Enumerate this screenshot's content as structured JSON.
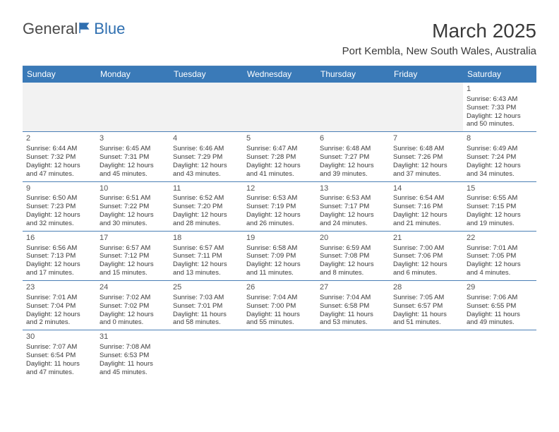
{
  "logo": {
    "text1": "General",
    "text2": "Blue"
  },
  "title": "March 2025",
  "location": "Port Kembla, New South Wales, Australia",
  "weekdays": [
    "Sunday",
    "Monday",
    "Tuesday",
    "Wednesday",
    "Thursday",
    "Friday",
    "Saturday"
  ],
  "colors": {
    "header_bg": "#3a7ab8",
    "border": "#4a7fb5",
    "empty_bg": "#f2f2f2",
    "text": "#3a3a3a",
    "logo_accent": "#2f6fb0"
  },
  "weeks": [
    [
      {
        "empty": true
      },
      {
        "empty": true
      },
      {
        "empty": true
      },
      {
        "empty": true
      },
      {
        "empty": true
      },
      {
        "empty": true
      },
      {
        "num": "1",
        "sunrise": "Sunrise: 6:43 AM",
        "sunset": "Sunset: 7:33 PM",
        "daylight": "Daylight: 12 hours and 50 minutes."
      }
    ],
    [
      {
        "num": "2",
        "sunrise": "Sunrise: 6:44 AM",
        "sunset": "Sunset: 7:32 PM",
        "daylight": "Daylight: 12 hours and 47 minutes."
      },
      {
        "num": "3",
        "sunrise": "Sunrise: 6:45 AM",
        "sunset": "Sunset: 7:31 PM",
        "daylight": "Daylight: 12 hours and 45 minutes."
      },
      {
        "num": "4",
        "sunrise": "Sunrise: 6:46 AM",
        "sunset": "Sunset: 7:29 PM",
        "daylight": "Daylight: 12 hours and 43 minutes."
      },
      {
        "num": "5",
        "sunrise": "Sunrise: 6:47 AM",
        "sunset": "Sunset: 7:28 PM",
        "daylight": "Daylight: 12 hours and 41 minutes."
      },
      {
        "num": "6",
        "sunrise": "Sunrise: 6:48 AM",
        "sunset": "Sunset: 7:27 PM",
        "daylight": "Daylight: 12 hours and 39 minutes."
      },
      {
        "num": "7",
        "sunrise": "Sunrise: 6:48 AM",
        "sunset": "Sunset: 7:26 PM",
        "daylight": "Daylight: 12 hours and 37 minutes."
      },
      {
        "num": "8",
        "sunrise": "Sunrise: 6:49 AM",
        "sunset": "Sunset: 7:24 PM",
        "daylight": "Daylight: 12 hours and 34 minutes."
      }
    ],
    [
      {
        "num": "9",
        "sunrise": "Sunrise: 6:50 AM",
        "sunset": "Sunset: 7:23 PM",
        "daylight": "Daylight: 12 hours and 32 minutes."
      },
      {
        "num": "10",
        "sunrise": "Sunrise: 6:51 AM",
        "sunset": "Sunset: 7:22 PM",
        "daylight": "Daylight: 12 hours and 30 minutes."
      },
      {
        "num": "11",
        "sunrise": "Sunrise: 6:52 AM",
        "sunset": "Sunset: 7:20 PM",
        "daylight": "Daylight: 12 hours and 28 minutes."
      },
      {
        "num": "12",
        "sunrise": "Sunrise: 6:53 AM",
        "sunset": "Sunset: 7:19 PM",
        "daylight": "Daylight: 12 hours and 26 minutes."
      },
      {
        "num": "13",
        "sunrise": "Sunrise: 6:53 AM",
        "sunset": "Sunset: 7:17 PM",
        "daylight": "Daylight: 12 hours and 24 minutes."
      },
      {
        "num": "14",
        "sunrise": "Sunrise: 6:54 AM",
        "sunset": "Sunset: 7:16 PM",
        "daylight": "Daylight: 12 hours and 21 minutes."
      },
      {
        "num": "15",
        "sunrise": "Sunrise: 6:55 AM",
        "sunset": "Sunset: 7:15 PM",
        "daylight": "Daylight: 12 hours and 19 minutes."
      }
    ],
    [
      {
        "num": "16",
        "sunrise": "Sunrise: 6:56 AM",
        "sunset": "Sunset: 7:13 PM",
        "daylight": "Daylight: 12 hours and 17 minutes."
      },
      {
        "num": "17",
        "sunrise": "Sunrise: 6:57 AM",
        "sunset": "Sunset: 7:12 PM",
        "daylight": "Daylight: 12 hours and 15 minutes."
      },
      {
        "num": "18",
        "sunrise": "Sunrise: 6:57 AM",
        "sunset": "Sunset: 7:11 PM",
        "daylight": "Daylight: 12 hours and 13 minutes."
      },
      {
        "num": "19",
        "sunrise": "Sunrise: 6:58 AM",
        "sunset": "Sunset: 7:09 PM",
        "daylight": "Daylight: 12 hours and 11 minutes."
      },
      {
        "num": "20",
        "sunrise": "Sunrise: 6:59 AM",
        "sunset": "Sunset: 7:08 PM",
        "daylight": "Daylight: 12 hours and 8 minutes."
      },
      {
        "num": "21",
        "sunrise": "Sunrise: 7:00 AM",
        "sunset": "Sunset: 7:06 PM",
        "daylight": "Daylight: 12 hours and 6 minutes."
      },
      {
        "num": "22",
        "sunrise": "Sunrise: 7:01 AM",
        "sunset": "Sunset: 7:05 PM",
        "daylight": "Daylight: 12 hours and 4 minutes."
      }
    ],
    [
      {
        "num": "23",
        "sunrise": "Sunrise: 7:01 AM",
        "sunset": "Sunset: 7:04 PM",
        "daylight": "Daylight: 12 hours and 2 minutes."
      },
      {
        "num": "24",
        "sunrise": "Sunrise: 7:02 AM",
        "sunset": "Sunset: 7:02 PM",
        "daylight": "Daylight: 12 hours and 0 minutes."
      },
      {
        "num": "25",
        "sunrise": "Sunrise: 7:03 AM",
        "sunset": "Sunset: 7:01 PM",
        "daylight": "Daylight: 11 hours and 58 minutes."
      },
      {
        "num": "26",
        "sunrise": "Sunrise: 7:04 AM",
        "sunset": "Sunset: 7:00 PM",
        "daylight": "Daylight: 11 hours and 55 minutes."
      },
      {
        "num": "27",
        "sunrise": "Sunrise: 7:04 AM",
        "sunset": "Sunset: 6:58 PM",
        "daylight": "Daylight: 11 hours and 53 minutes."
      },
      {
        "num": "28",
        "sunrise": "Sunrise: 7:05 AM",
        "sunset": "Sunset: 6:57 PM",
        "daylight": "Daylight: 11 hours and 51 minutes."
      },
      {
        "num": "29",
        "sunrise": "Sunrise: 7:06 AM",
        "sunset": "Sunset: 6:55 PM",
        "daylight": "Daylight: 11 hours and 49 minutes."
      }
    ],
    [
      {
        "num": "30",
        "sunrise": "Sunrise: 7:07 AM",
        "sunset": "Sunset: 6:54 PM",
        "daylight": "Daylight: 11 hours and 47 minutes."
      },
      {
        "num": "31",
        "sunrise": "Sunrise: 7:08 AM",
        "sunset": "Sunset: 6:53 PM",
        "daylight": "Daylight: 11 hours and 45 minutes."
      },
      {
        "empty": true
      },
      {
        "empty": true
      },
      {
        "empty": true
      },
      {
        "empty": true
      },
      {
        "empty": true
      }
    ]
  ]
}
